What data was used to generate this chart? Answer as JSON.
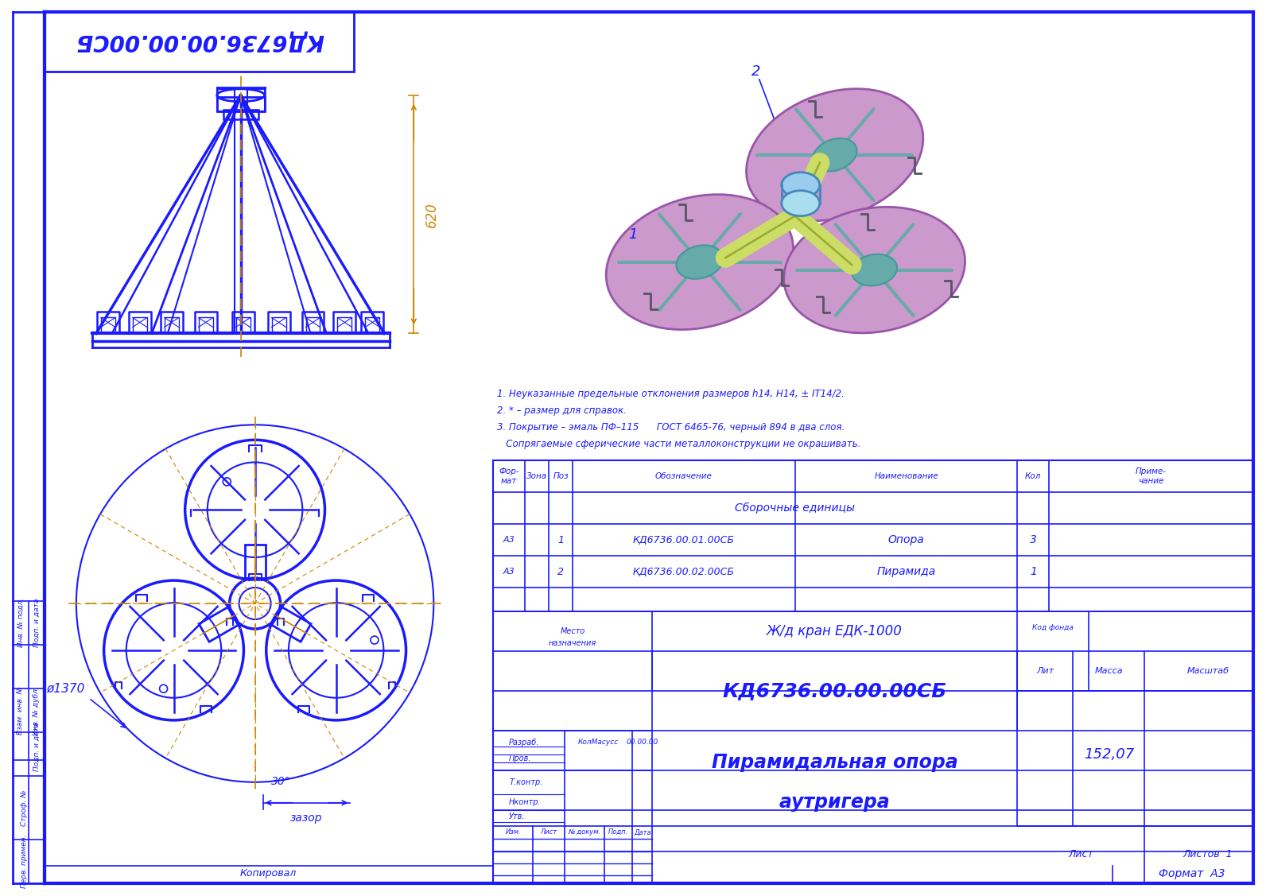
{
  "bg_color": "#ffffff",
  "bc": "#1a1aff",
  "dc": "#1a1aff",
  "orc": "#cc8800",
  "pink": "#cc99cc",
  "pink_edge": "#9955aa",
  "yg": "#ccdd66",
  "yg_edge": "#99aa33",
  "teal": "#66aaaa",
  "teal_edge": "#449999",
  "lb": "#99ccee",
  "lb_edge": "#4488bb",
  "title_mirrored": "КД6736.00.00.00СБ",
  "designation": "КД6736.00.00.00СБ",
  "name_line1": "Пирамидальная опора",
  "name_line2": "аутригера",
  "crane": "Ж/д кран ЕДК-1000",
  "mass": "152,07",
  "dim_620": "620",
  "dim_phi1370": "ø1370",
  "dim_30": "30°",
  "dim_zazor": "зазор",
  "label1": "1",
  "label2": "2",
  "notes": [
    "1. Неуказанные предельные отклонения размеров h14, H14, ± IT14/2.",
    "2. * – размер для справок.",
    "3. Покрытие – эмаль ПФ–115      ГОСТ 6465-76, черный 894 в два слоя.",
    "   Сопрягаемые сферические части металлоконструкции не окрашивать."
  ],
  "spec_rows": [
    {
      "fmt": "А3",
      "zona": "",
      "pos": "1",
      "oboz": "КД6736.00.01.00СБ",
      "name": "Опора",
      "kol": "3",
      "prim": ""
    },
    {
      "fmt": "А3",
      "zona": "",
      "pos": "2",
      "oboz": "КД6736.00.02.00СБ",
      "name": "Пирамида",
      "kol": "1",
      "prim": ""
    }
  ],
  "stamp_roles": [
    "Разраб.",
    "Пров.",
    "Т.контр.",
    "Нконтр.",
    "Утв."
  ],
  "stamp_names": [
    "КолМасусс",
    "",
    "",
    "",
    ""
  ],
  "stamp_dates": [
    "00.00.00",
    "",
    "",
    "",
    ""
  ]
}
